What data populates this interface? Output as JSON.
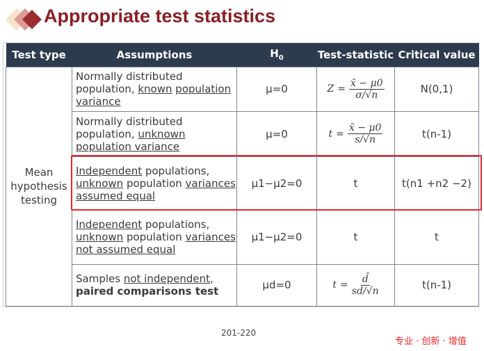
{
  "title": "Appropriate test statistics",
  "headers": [
    "Test type",
    "Assumptions",
    "H0",
    "Test-statistic",
    "Critical value"
  ],
  "test_type": "Mean hypothesis testing",
  "rows": [
    {
      "assumption_html": "Normally distributed population, <u>known</u> <u>population variance</u>",
      "h0": "μ=0",
      "stat": {
        "lhs": "Z",
        "num": "x̄ − μ0",
        "den": "σ/√n"
      },
      "critical": "N(0,1)"
    },
    {
      "assumption_html": "Normally distributed population, <u>unknown</u> <u>population variance</u>",
      "h0": "μ=0",
      "stat": {
        "lhs": "t",
        "num": "x̄ − μ0",
        "den": "s/√n"
      },
      "critical": "t(n-1)"
    },
    {
      "assumption_html": "<u>Independent</u> populations, <u>unknown</u> population <u>variances assumed equal</u>",
      "h0": "μ1−μ2=0",
      "stat_text": "t",
      "critical": "t(n1 +n2 −2)"
    },
    {
      "assumption_html": "<u>Independent</u> populations, <u>unknown</u> population <u>variances not assumed equal</u>",
      "h0": "μ1−μ2=0",
      "stat_text": "t",
      "critical": "t"
    },
    {
      "assumption_html": "Samples <u>not independent</u>, <b>paired comparisons test</b>",
      "h0": "μd=0",
      "stat": {
        "lhs": "t",
        "num": "d̄",
        "den": "sd/√n"
      },
      "critical": "t(n-1)"
    }
  ],
  "page": "201-220",
  "slogan": "专业 · 创新 · 增值",
  "colors": {
    "title": "#8b1f24",
    "header_bg": "#2d3b4e",
    "highlight": "#e8242a"
  }
}
